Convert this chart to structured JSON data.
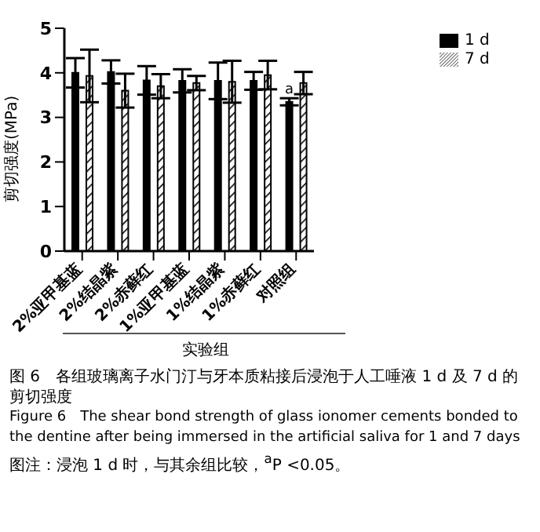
{
  "chart_data": {
    "type": "bar",
    "title": "图 6　各组玻璃离子水门汀与牙本质粘接后浸泡于人工唾液 1 d 及 7 d 的剪切强度",
    "subtitle": "Figure 6　The shear bond strength of glass ionomer cements bonded to the dentine after being immersed in the artificial saliva for 1 and 7 days",
    "ylabel": "剪切强度(MPa)",
    "categories": [
      "2%亚甲基蓝",
      "2%结晶紫",
      "2%赤藓红",
      "1%亚甲基蓝",
      "1%结晶紫",
      "1%赤藓红",
      "对照组"
    ],
    "series": [
      {
        "name": "1 d",
        "color": "#000000",
        "values": [
          4.0,
          4.02,
          3.83,
          3.82,
          3.82,
          3.82,
          3.35
        ],
        "errors": [
          0.33,
          0.26,
          0.32,
          0.26,
          0.41,
          0.2,
          0.08
        ]
      },
      {
        "name": "7 d",
        "color": "#000000",
        "values": [
          3.93,
          3.6,
          3.7,
          3.77,
          3.8,
          3.95,
          3.77
        ],
        "errors": [
          0.59,
          0.38,
          0.27,
          0.16,
          0.47,
          0.32,
          0.25
        ]
      }
    ],
    "ylim": [
      0,
      5
    ],
    "yticks": [
      0,
      1,
      2,
      3,
      4,
      5
    ],
    "grid": false,
    "legend": "top right",
    "annotations": [
      {
        "text": "a",
        "x": "对照组",
        "y": 3.43
      },
      "实验组",
      "图注：浸泡 1 d 时，与其余组比较，$^{a}$P <0.05。"
    ]
  }
}
